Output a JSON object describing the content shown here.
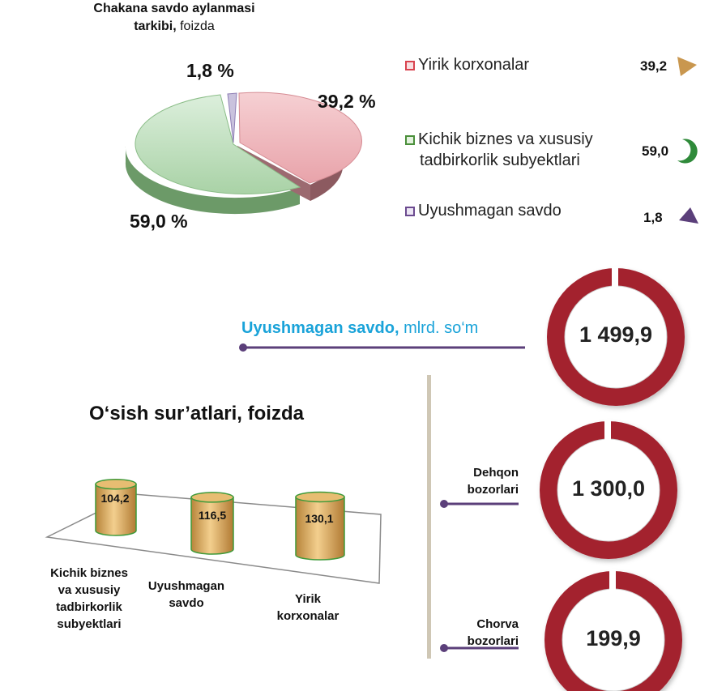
{
  "pie": {
    "title_bold_1": "Chakana savdo aylanmasi",
    "title_bold_2": "tarkibi,",
    "title_rest": " foizda",
    "labels": [
      "39,2 %",
      "59,0 %",
      "1,8 %"
    ]
  },
  "legend": [
    {
      "label_1": "Yirik korxonalar",
      "label_2": "",
      "value": "39,2",
      "color": "#d9434f"
    },
    {
      "label_1": "Kichik biznes va xususiy",
      "label_2": "tadbirkorlik subyektlari",
      "value": "59,0",
      "color": "#4a8f3a"
    },
    {
      "label_1": "Uyushmagan savdo",
      "label_2": "",
      "value": "1,8",
      "color": "#6b4a8f"
    }
  ],
  "uyushmagan": {
    "title": "Uyushmagan savdo,",
    "unit": " mlrd. so‘m"
  },
  "rings": [
    {
      "label_1": "",
      "label_2": "",
      "value": "1 499,9"
    },
    {
      "label_1": "Dehqon",
      "label_2": "bozorlari",
      "value": "1 300,0"
    },
    {
      "label_1": "Chorva",
      "label_2": "bozorlari",
      "value": "199,9"
    }
  ],
  "growth": {
    "title": "O‘sish sur’atlari, foizda",
    "values": [
      "104,2",
      "116,5",
      "130,1"
    ],
    "categories": [
      [
        "Kichik biznes",
        "va xususiy",
        "tadbirkorlik",
        "subyektlari"
      ],
      [
        "Uyushmagan",
        "savdo"
      ],
      [
        "Yirik",
        "korxonalar"
      ]
    ]
  },
  "colors": {
    "pie_red": "#f0b9be",
    "pie_green": "#b9dcb9",
    "pie_purple": "#c9c2dd",
    "ring": "#a3202e",
    "accent_blue": "#1aa3d9",
    "line_purple": "#5b3f7a",
    "cylinder": "#d2a35c"
  },
  "chart_data": [
    {
      "type": "pie",
      "title": "Chakana savdo aylanmasi tarkibi, foizda",
      "categories": [
        "Yirik korxonalar",
        "Kichik biznes va xususiy tadbirkorlik subyektlari",
        "Uyushmagan savdo"
      ],
      "values": [
        39.2,
        59.0,
        1.8
      ]
    },
    {
      "type": "bar",
      "title": "O‘sish sur’atlari, foizda",
      "categories": [
        "Kichik biznes va xususiy tadbirkorlik subyektlari",
        "Uyushmagan savdo",
        "Yirik korxonalar"
      ],
      "values": [
        104.2,
        116.5,
        130.1
      ]
    },
    {
      "type": "table",
      "title": "Uyushmagan savdo, mlrd. so‘m",
      "categories": [
        "Uyushmagan savdo",
        "Dehqon bozorlari",
        "Chorva bozorlari"
      ],
      "values": [
        1499.9,
        1300.0,
        199.9
      ]
    }
  ]
}
